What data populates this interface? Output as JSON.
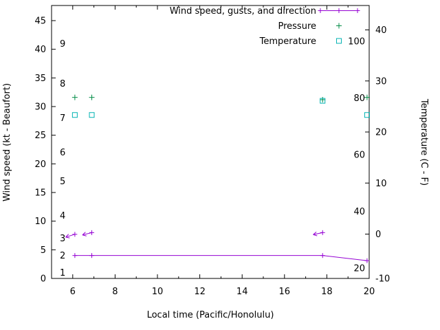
{
  "chart_data": {
    "type": "line",
    "title": "",
    "xlabel": "Local time (Pacific/Honolulu)",
    "ylabel_left": "Wind speed (kt - Beaufort)",
    "ylabel_right": "Temperature (C - F)",
    "xlim": [
      5,
      20
    ],
    "x_ticks": [
      6,
      8,
      10,
      12,
      14,
      16,
      18,
      20
    ],
    "x_minor_step": 1,
    "left_axis": {
      "ticks": [
        0,
        5,
        10,
        15,
        20,
        25,
        30,
        35,
        40,
        45
      ],
      "range": [
        0,
        47.6
      ],
      "beaufort_labels": [
        {
          "label": "1",
          "kt": 1
        },
        {
          "label": "2",
          "kt": 4
        },
        {
          "label": "3",
          "kt": 7
        },
        {
          "label": "4",
          "kt": 11
        },
        {
          "label": "5",
          "kt": 17
        },
        {
          "label": "6",
          "kt": 22
        },
        {
          "label": "7",
          "kt": 28
        },
        {
          "label": "8",
          "kt": 34
        },
        {
          "label": "9",
          "kt": 41
        }
      ]
    },
    "right_axis": {
      "celsius_ticks": [
        -10,
        0,
        10,
        20,
        30,
        40
      ],
      "fahrenheit_labels": [
        20,
        40,
        60,
        80,
        100
      ]
    },
    "legend": [
      {
        "label": "Wind speed, gusts, and direction",
        "marker": "line-plus",
        "color": "#9400d3"
      },
      {
        "label": "Pressure",
        "marker": "plus",
        "color": "#008b45"
      },
      {
        "label": "Temperature",
        "marker": "open-square",
        "color": "#00b2b2"
      }
    ],
    "series": {
      "wind_speed_kt": {
        "x": [
          6.1,
          6.9,
          17.8,
          19.9
        ],
        "values": [
          4,
          4,
          4,
          3.1
        ],
        "color": "#9400d3"
      },
      "wind_gusts": {
        "x": [
          6.1,
          6.9,
          17.8
        ],
        "gust_kt": [
          7.7,
          8.0,
          8.0
        ],
        "arrow_direction_deg": [
          197,
          194,
          192
        ],
        "color": "#9400d3"
      },
      "pressure": {
        "x": [
          6.1,
          6.9,
          17.8,
          19.9
        ],
        "left_axis_values": [
          31.6,
          31.6,
          31.2,
          31.6
        ],
        "color": "#008b45"
      },
      "temperature_f": {
        "x": [
          6.1,
          6.9,
          17.8,
          19.9
        ],
        "values": [
          74,
          74,
          79,
          74
        ],
        "color": "#00b2b2"
      }
    }
  }
}
